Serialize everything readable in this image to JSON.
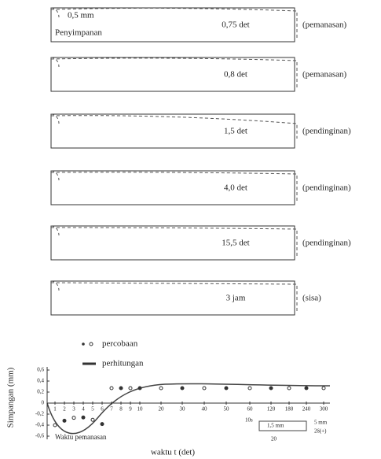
{
  "panels": [
    {
      "time": "0,75 det",
      "phase": "(pemanasan)"
    },
    {
      "time": "0,8 det",
      "phase": "(pemanasan)"
    },
    {
      "time": "1,5 det",
      "phase": "(pendinginan)"
    },
    {
      "time": "4,0 det",
      "phase": "(pendinginan)"
    },
    {
      "time": "15,5 det",
      "phase": "(pendinginan)"
    },
    {
      "time": "3 jam",
      "phase": "(sisa)"
    }
  ],
  "panel_notes": {
    "thickness": "0,5 mm",
    "label": "Penyimpanan"
  },
  "chart": {
    "legend": [
      "percobaan",
      "perhitungan"
    ],
    "y_label": "Simpangan (mm)",
    "y_ticks": [
      "0,6",
      "0,4",
      "0,2",
      "0",
      "-0,2",
      "-0,4",
      "-0,6"
    ],
    "x_ticks": [
      "1",
      "2",
      "3",
      "4",
      "5",
      "6",
      "7",
      "8",
      "9",
      "10",
      "20",
      "30",
      "40",
      "50",
      "60",
      "120",
      "180",
      "240",
      "300"
    ],
    "x_label": "waktu t (det)",
    "heating_label": "Waktu pemanasan",
    "inset": [
      "10s",
      "1,5 mm",
      "5 mm",
      "2δ(+)",
      "20"
    ]
  }
}
